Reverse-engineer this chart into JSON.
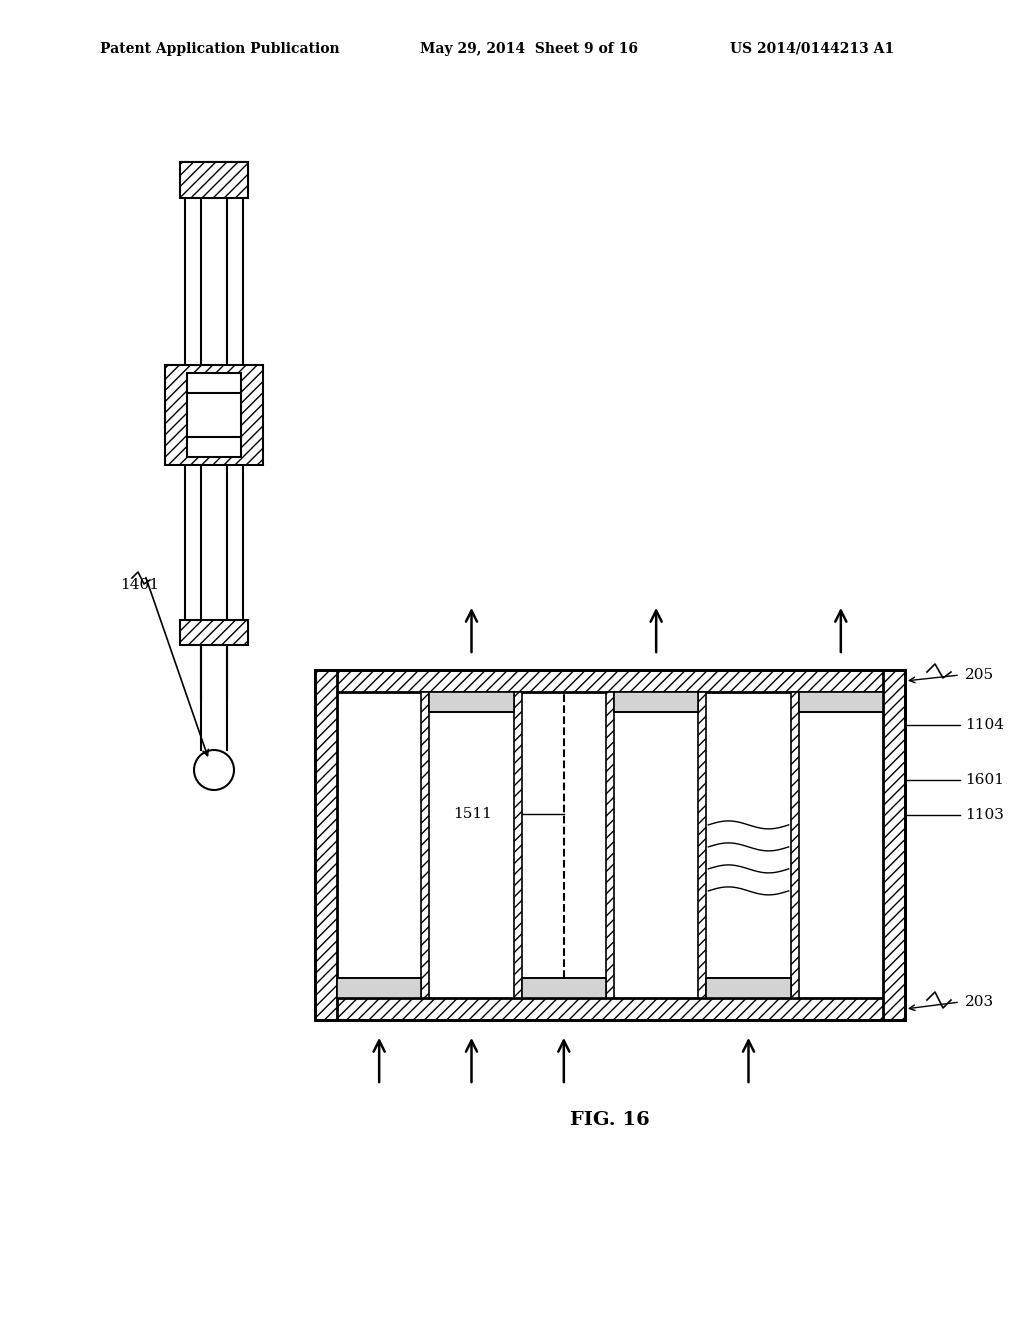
{
  "header_left": "Patent Application Publication",
  "header_mid": "May 29, 2014  Sheet 9 of 16",
  "header_right": "US 2014/0144213 A1",
  "fig_label": "FIG. 16",
  "label_1401": "1401",
  "label_205": "205",
  "label_1104": "1104",
  "label_1601": "1601",
  "label_1103": "1103",
  "label_203": "203",
  "label_1511": "1511",
  "bg_color": "#ffffff",
  "line_color": "#000000",
  "hatch_color": "#888888"
}
